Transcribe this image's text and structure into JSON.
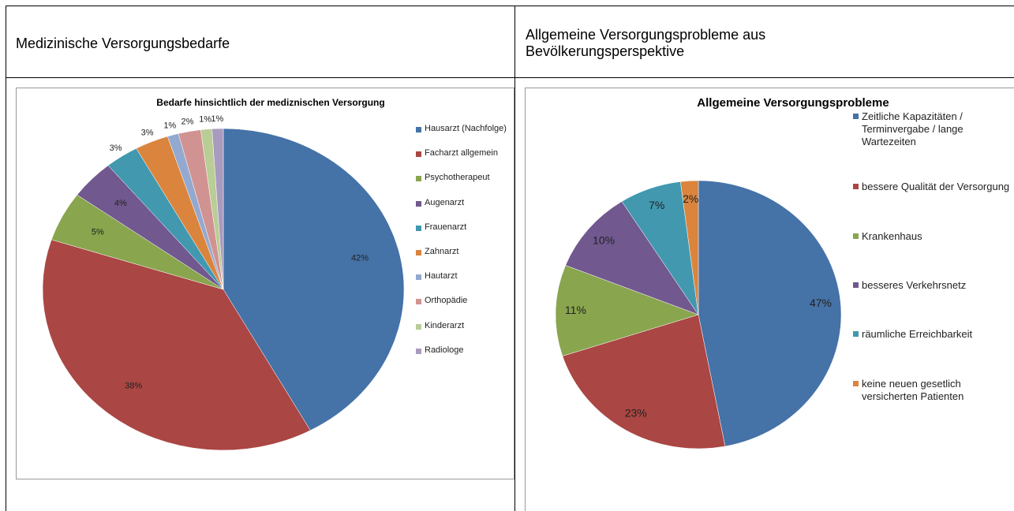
{
  "table": {
    "headers": [
      "Medizinische Versorgungsbedarfe",
      "Allgemeine Versorgungsprobleme aus Bevölkerungsperspektive"
    ]
  },
  "chart_data": [
    {
      "type": "pie",
      "title": "Bedarfe hinsichtlich der mediznischen Versorgung",
      "categories": [
        "Hausarzt (Nachfolge)",
        "Facharzt allgemein",
        "Psychotherapeut",
        "Augenarzt",
        "Frauenarzt",
        "Zahnarzt",
        "Hautarzt",
        "Orthopädie",
        "Kinderarzt",
        "Radiologe"
      ],
      "values": [
        42,
        38,
        5,
        4,
        3,
        3,
        1,
        2,
        1,
        1
      ],
      "value_labels": [
        "42%",
        "38%",
        "5%",
        "4%",
        "3%",
        "3%",
        "1%",
        "2%",
        "1%",
        "1%"
      ],
      "colors": [
        "#4572a7",
        "#aa4643",
        "#89a54e",
        "#71588f",
        "#4198af",
        "#db843d",
        "#93a9cf",
        "#d19392",
        "#b9cd96",
        "#a99bbd"
      ]
    },
    {
      "type": "pie",
      "title": "Allgemeine Versorgungsprobleme",
      "categories": [
        "Zeitliche Kapazitäten / Terminvergabe / lange Wartezeiten",
        "bessere Qualität der Versorgung",
        "Krankenhaus",
        "besseres Verkehrsnetz",
        "räumliche Erreichbarkeit",
        "keine neuen gesetlich versicherten Patienten"
      ],
      "values": [
        47,
        23,
        11,
        10,
        7,
        2
      ],
      "value_labels": [
        "47%",
        "23%",
        "11%",
        "10%",
        "7%",
        "2%"
      ],
      "colors": [
        "#4572a7",
        "#aa4643",
        "#89a54e",
        "#71588f",
        "#4198af",
        "#db843d"
      ]
    }
  ]
}
